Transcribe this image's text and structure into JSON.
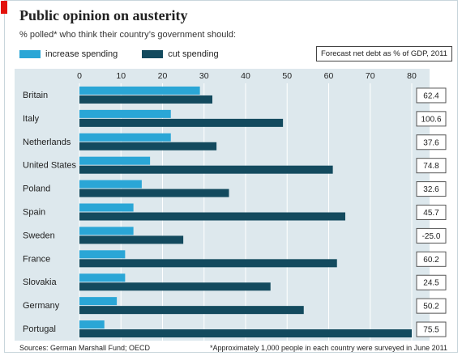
{
  "header": {
    "title": "Public opinion on austerity",
    "subtitle": "% polled* who think their country’s government should:"
  },
  "legend": {
    "increase_label": "increase spending",
    "cut_label": "cut spending",
    "debt_label": "Forecast net debt as % of GDP, 2011"
  },
  "colors": {
    "increase": "#2aa6d6",
    "cut": "#134a5e",
    "panel": "#dde8ed",
    "grid": "#ffffff"
  },
  "chart_data": {
    "type": "bar",
    "orientation": "horizontal",
    "categories": [
      "Britain",
      "Italy",
      "Netherlands",
      "United States",
      "Poland",
      "Spain",
      "Sweden",
      "France",
      "Slovakia",
      "Germany",
      "Portugal"
    ],
    "series": [
      {
        "name": "increase spending",
        "values": [
          29,
          22,
          22,
          17,
          15,
          13,
          13,
          11,
          11,
          9,
          6
        ]
      },
      {
        "name": "cut spending",
        "values": [
          32,
          49,
          33,
          61,
          36,
          64,
          25,
          62,
          46,
          54,
          80
        ]
      }
    ],
    "debt": [
      "62.4",
      "100.6",
      "37.6",
      "74.8",
      "32.6",
      "45.7",
      "-25.0",
      "60.2",
      "24.5",
      "50.2",
      "75.5"
    ],
    "xticks": [
      0,
      10,
      20,
      30,
      40,
      50,
      60,
      70,
      80
    ],
    "xlim": [
      0,
      80
    ],
    "grid": true,
    "legend_position": "top"
  },
  "footer": {
    "sources": "Sources: German Marshall Fund; OECD",
    "note": "*Approximately 1,000 people in each country were surveyed in June 2011"
  }
}
